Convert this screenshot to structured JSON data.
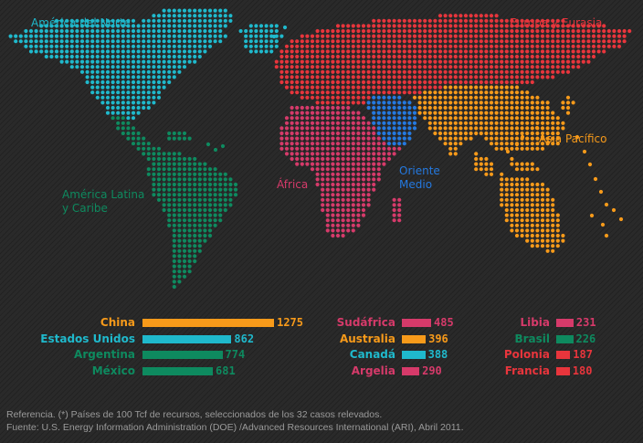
{
  "colors": {
    "north_america": "#1fb9cc",
    "europe_eurasia": "#e8353c",
    "latin_america": "#0e8a5f",
    "africa": "#d63a6a",
    "middle_east": "#2479e0",
    "asia_pacific": "#f79a1a"
  },
  "regions": [
    {
      "key": "north_america",
      "label": "América del Norte",
      "color": "#1fb9cc"
    },
    {
      "key": "europe_eurasia",
      "label": "Europa y Eurasia",
      "color": "#e8353c"
    },
    {
      "key": "asia_pacific",
      "label": "Asia Pacífico",
      "color": "#f79a1a"
    },
    {
      "key": "middle_east",
      "label": "Oriente\nMedio",
      "color": "#2479e0"
    },
    {
      "key": "africa",
      "label": "África",
      "color": "#d63a6a"
    },
    {
      "key": "latin_america",
      "label": "América Latina\ny Caribe",
      "color": "#0e8a5f"
    }
  ],
  "chart_data": {
    "type": "bar",
    "unit_note": "Tcf",
    "groups": [
      [
        {
          "country": "China",
          "value": 1275,
          "region": "asia_pacific",
          "color": "#f79a1a"
        },
        {
          "country": "Estados Unidos",
          "value": 862,
          "region": "north_america",
          "color": "#1fb9cc"
        },
        {
          "country": "Argentina",
          "value": 774,
          "region": "latin_america",
          "color": "#0e8a5f"
        },
        {
          "country": "México",
          "value": 681,
          "region": "latin_america",
          "color": "#0e8a5f"
        }
      ],
      [
        {
          "country": "Sudáfrica",
          "value": 485,
          "region": "africa",
          "color": "#d63a6a"
        },
        {
          "country": "Australia",
          "value": 396,
          "region": "asia_pacific",
          "color": "#f79a1a"
        },
        {
          "country": "Canadá",
          "value": 388,
          "region": "north_america",
          "color": "#1fb9cc"
        },
        {
          "country": "Argelia",
          "value": 290,
          "region": "africa",
          "color": "#d63a6a"
        }
      ],
      [
        {
          "country": "Libia",
          "value": 231,
          "region": "africa",
          "color": "#d63a6a"
        },
        {
          "country": "Brasil",
          "value": 226,
          "region": "latin_america",
          "color": "#0e8a5f"
        },
        {
          "country": "Polonia",
          "value": 187,
          "region": "europe_eurasia",
          "color": "#e8353c"
        },
        {
          "country": "Francia",
          "value": 180,
          "region": "europe_eurasia",
          "color": "#e8353c"
        }
      ]
    ]
  },
  "footer": {
    "reference": "Referencia. (*) Países de 100 Tcf de recursos, seleccionados de los 32 casos relevados.",
    "source": "Fuente: U.S. Energy Information Administration (DOE) /Advanced Resources International (ARI), Abril 2011."
  }
}
